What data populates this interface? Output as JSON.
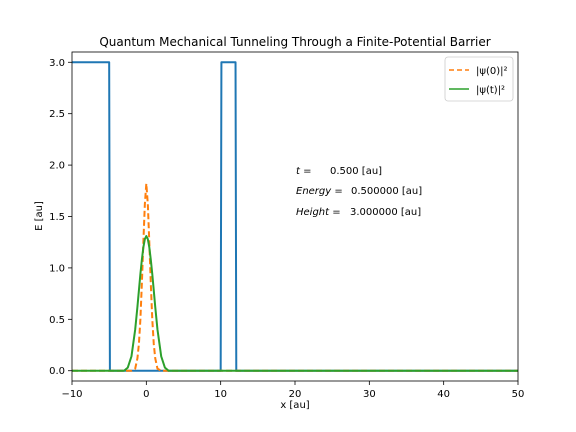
{
  "chart_data": {
    "type": "line",
    "title": "Quantum Mechanical Tunneling Through a Finite-Potential Barrier",
    "xlabel": "x [au]",
    "ylabel": "E [au]",
    "xlim": [
      -10,
      50
    ],
    "ylim": [
      -0.1,
      3.1
    ],
    "xticks": [
      -10,
      0,
      10,
      20,
      30,
      40,
      50
    ],
    "xtick_labels": [
      "−10",
      "0",
      "10",
      "20",
      "30",
      "40",
      "50"
    ],
    "yticks": [
      0.0,
      0.5,
      1.0,
      1.5,
      2.0,
      2.5,
      3.0
    ],
    "ytick_labels": [
      "0.0",
      "0.5",
      "1.0",
      "1.5",
      "2.0",
      "2.5",
      "3.0"
    ],
    "grid": false,
    "legend_position": "top-right",
    "series": [
      {
        "name": "",
        "style": "solid",
        "color": "#1f77b4",
        "x": [
          -10,
          -5,
          -4.9,
          10,
          10.1,
          12,
          12.1,
          50
        ],
        "y": [
          3.0,
          3.0,
          0.0,
          0.0,
          3.0,
          3.0,
          0.0,
          0.0
        ]
      },
      {
        "name": "|ψ(0)|²",
        "style": "dashed",
        "color": "#ff7f0e",
        "x": [
          -10,
          -2,
          -1.5,
          -1.2,
          -1.0,
          -0.8,
          -0.6,
          -0.4,
          -0.2,
          0.0,
          0.2,
          0.4,
          0.6,
          0.8,
          1.0,
          1.2,
          1.5,
          2,
          50
        ],
        "y": [
          0.0,
          0.0,
          0.02,
          0.12,
          0.26,
          0.5,
          0.85,
          1.25,
          1.62,
          1.82,
          1.62,
          1.25,
          0.85,
          0.5,
          0.26,
          0.12,
          0.02,
          0.0,
          0.0
        ]
      },
      {
        "name": "|ψ(t)|²",
        "style": "solid",
        "color": "#2ca02c",
        "x": [
          -10,
          -3,
          -2.5,
          -2.0,
          -1.5,
          -1.2,
          -1.0,
          -0.8,
          -0.6,
          -0.4,
          -0.2,
          0.0,
          0.2,
          0.4,
          0.6,
          0.8,
          1.0,
          1.2,
          1.5,
          2.0,
          2.5,
          3,
          50
        ],
        "y": [
          0.0,
          0.0,
          0.03,
          0.14,
          0.4,
          0.62,
          0.78,
          0.94,
          1.08,
          1.2,
          1.28,
          1.31,
          1.28,
          1.2,
          1.08,
          0.94,
          0.78,
          0.62,
          0.4,
          0.14,
          0.03,
          0.0,
          0.0
        ]
      }
    ],
    "annotations": [
      {
        "label": "t =",
        "value": "0.500 [au]"
      },
      {
        "label": "Energy =",
        "value": "0.500000 [au]"
      },
      {
        "label": "Height =",
        "value": "3.000000 [au]"
      }
    ]
  }
}
